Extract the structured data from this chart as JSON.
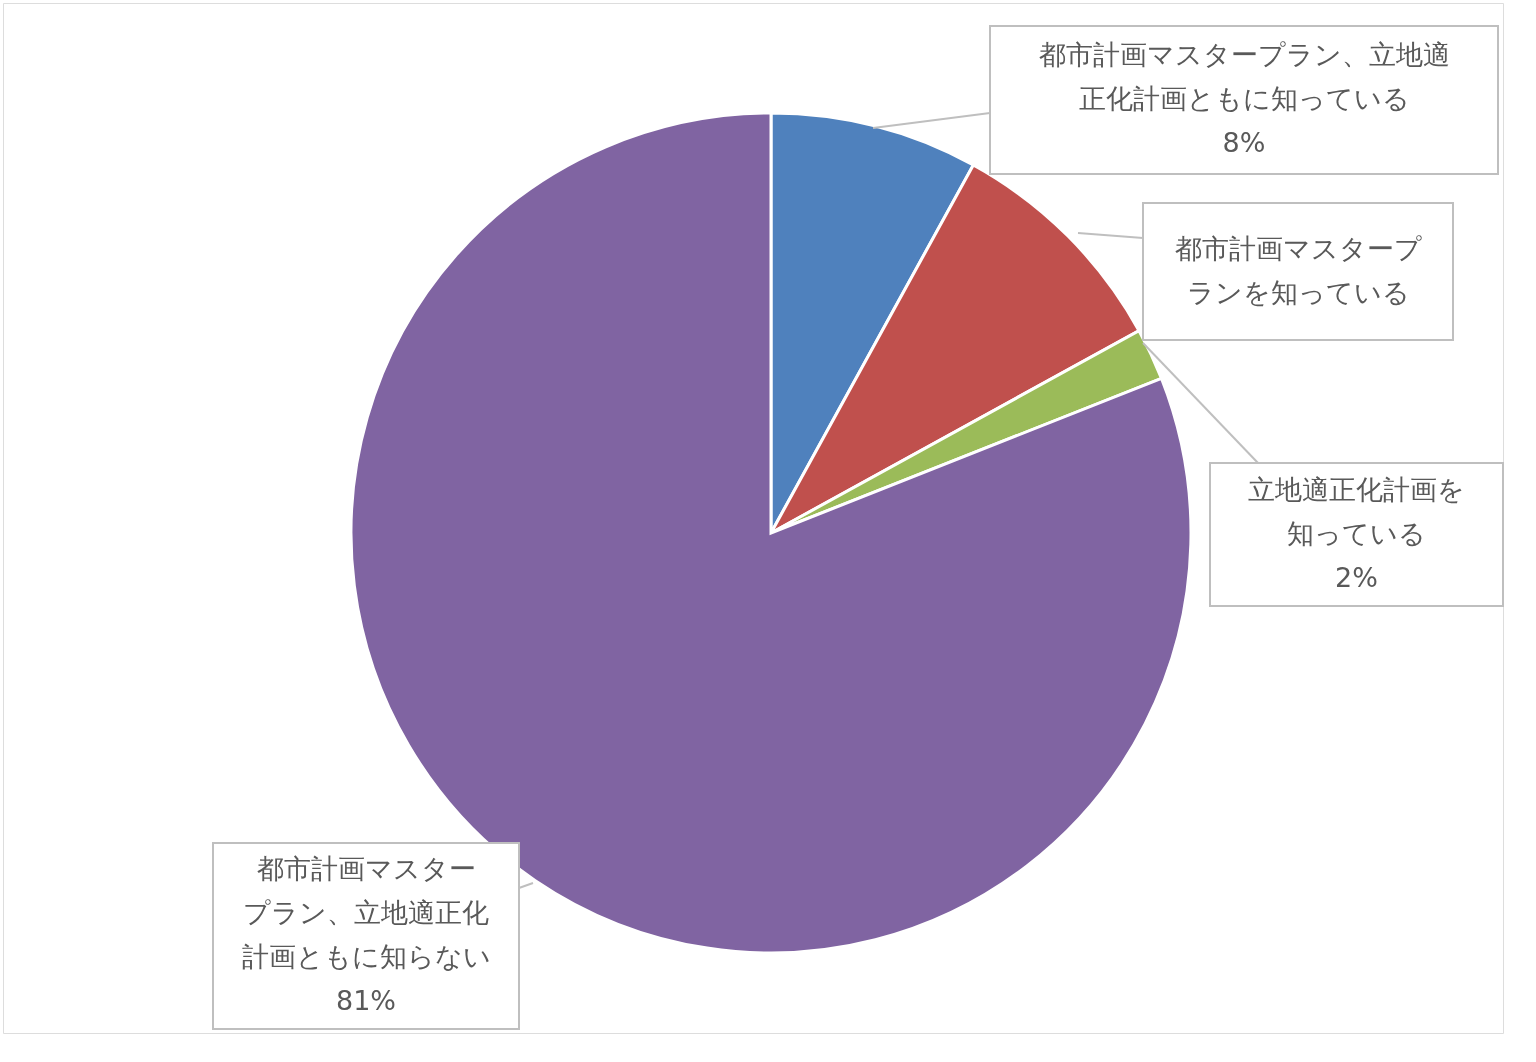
{
  "chart_data": {
    "type": "pie",
    "categories": [
      "都市計画マスタープラン、立地適正化計画ともに知っている",
      "都市計画マスタープランを知っている",
      "立地適正化計画を知っている",
      "都市計画マスタープラン、立地適正化計画ともに知らない"
    ],
    "values": [
      8,
      9,
      2,
      81
    ],
    "colors": [
      "#4f81bd",
      "#c0504d",
      "#9bbb59",
      "#8064a2"
    ],
    "value_labels": [
      "8%",
      null,
      "2%",
      "81%"
    ]
  }
}
